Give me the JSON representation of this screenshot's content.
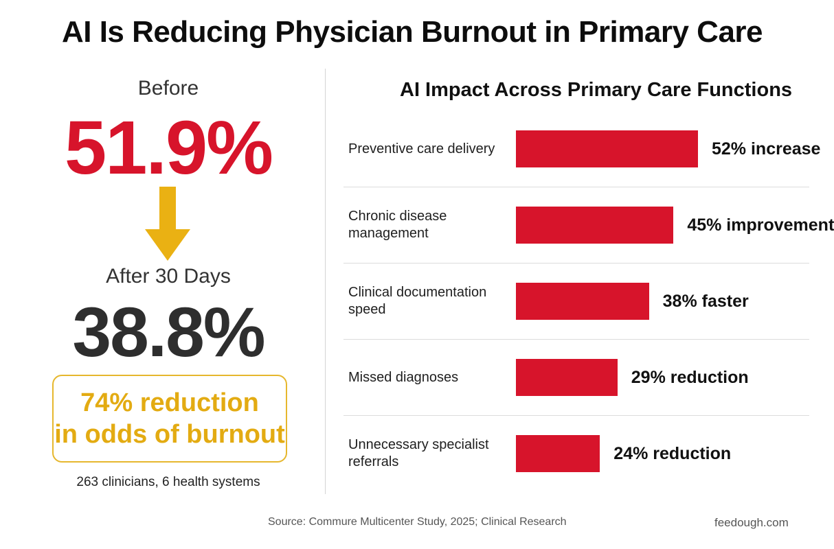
{
  "title": "AI Is Reducing Physician Burnout in Primary Care",
  "left": {
    "before_label": "Before",
    "before_value": "51.9%",
    "after_label": "After 30 Days",
    "after_value": "38.8%",
    "reduction_line1": "74% reduction",
    "reduction_line2": "in odds of burnout",
    "sample_note": "263 clinicians, 6 health systems"
  },
  "colors": {
    "bar": "#d7142b",
    "accent": "#e3ab12",
    "arrow": "#eab113"
  },
  "chart_data": {
    "type": "bar",
    "orientation": "horizontal",
    "title": "AI Impact Across Primary Care Functions",
    "xlabel": "",
    "ylabel": "",
    "grid": false,
    "xlim": [
      0,
      52
    ],
    "categories": [
      "Preventive care delivery",
      "Chronic disease management",
      "Clinical documentation speed",
      "Missed diagnoses",
      "Unnecessary specialist referrals"
    ],
    "values": [
      52,
      45,
      38,
      29,
      24
    ],
    "value_labels": [
      "52% increase",
      "45% improvement",
      "38% faster",
      "29% reduction",
      "24% reduction"
    ]
  },
  "footer": {
    "source": "Source: Commure Multicenter Study, 2025; Clinical Research",
    "site": "feedough.com"
  }
}
